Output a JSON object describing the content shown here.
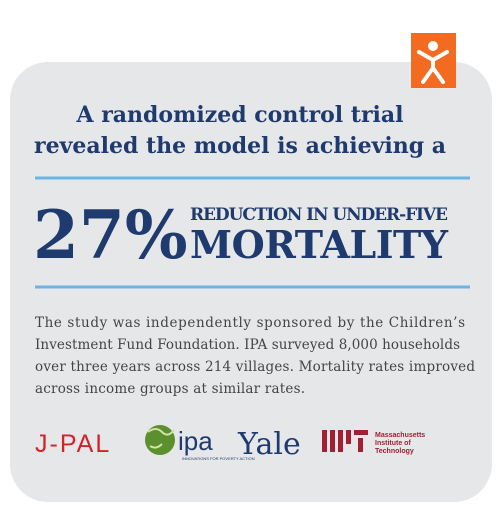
{
  "heading": {
    "lines": [
      "A randomized control trial",
      "revealed the model is achieving a"
    ]
  },
  "stat": {
    "number": "27%",
    "caption_top": "REDUCTION IN UNDER-FIVE",
    "caption_main": "MORTALITY"
  },
  "body": {
    "lines": [
      "The study was independently sponsored by the Children’s",
      "Investment Fund Foundation. IPA surveyed 8,000 households",
      "over three years across 214 villages. Mortality rates improved",
      "across income groups at similar rates."
    ]
  },
  "logos": {
    "jpal": "J-PAL",
    "ipa": "ipa",
    "ipa_tagline": "INNOVATIONS FOR POVERTY ACTION",
    "yale": "Yale",
    "mit_name": [
      "Massachusetts",
      "Institute of",
      "Technology"
    ]
  }
}
